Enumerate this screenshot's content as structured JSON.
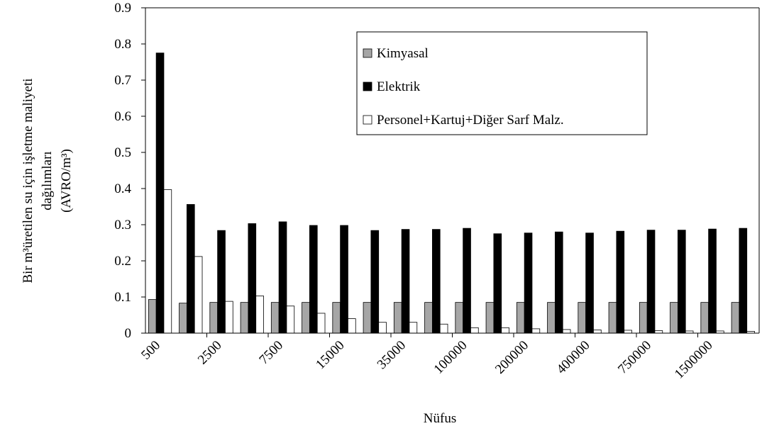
{
  "chart_data": {
    "type": "bar",
    "y_label": [
      "Bir m³üretilen su için işletme maliyeti",
      "dağılımları",
      "(AVRO/m³)"
    ],
    "x_label": "Nüfus",
    "categories": [
      "500",
      null,
      "2500",
      null,
      "7500",
      null,
      "15000",
      null,
      "35000",
      null,
      "100000",
      null,
      "200000",
      null,
      "400000",
      null,
      "750000",
      null,
      "1500000",
      null
    ],
    "series": [
      {
        "name": "Kimyasal",
        "color": "#a6a6a6",
        "values": [
          0.093,
          0.083,
          0.085,
          0.085,
          0.085,
          0.085,
          0.085,
          0.085,
          0.085,
          0.085,
          0.085,
          0.085,
          0.085,
          0.085,
          0.085,
          0.085,
          0.085,
          0.085,
          0.085,
          0.085
        ]
      },
      {
        "name": "Elektrik",
        "color": "#000000",
        "values": [
          0.775,
          0.356,
          0.284,
          0.303,
          0.308,
          0.298,
          0.298,
          0.284,
          0.287,
          0.287,
          0.29,
          0.275,
          0.277,
          0.28,
          0.277,
          0.282,
          0.285,
          0.285,
          0.288,
          0.29
        ]
      },
      {
        "name": "Personel+Kartuj+Diğer Sarf Malz.",
        "color": "#ffffff",
        "values": [
          0.397,
          0.212,
          0.088,
          0.103,
          0.075,
          0.055,
          0.04,
          0.03,
          0.03,
          0.025,
          0.015,
          0.015,
          0.012,
          0.01,
          0.009,
          0.008,
          0.007,
          0.006,
          0.006,
          0.005
        ]
      }
    ],
    "ylim": [
      0,
      0.9
    ],
    "yticks": [
      0,
      0.1,
      0.2,
      0.3,
      0.4,
      0.5,
      0.6,
      0.7,
      0.8,
      0.9
    ]
  }
}
